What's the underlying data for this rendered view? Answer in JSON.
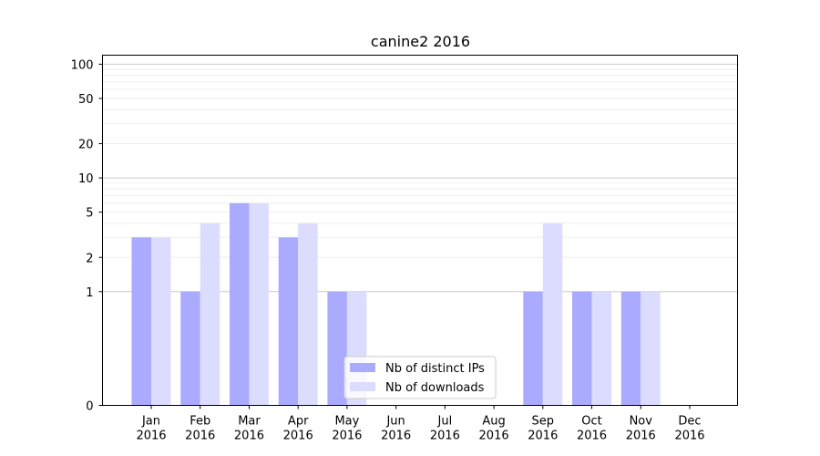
{
  "chart_data": {
    "type": "bar",
    "title": "canine2 2016",
    "xlabel": "",
    "ylabel": "",
    "categories": [
      "Jan\n2016",
      "Feb\n2016",
      "Mar\n2016",
      "Apr\n2016",
      "May\n2016",
      "Jun\n2016",
      "Jul\n2016",
      "Aug\n2016",
      "Sep\n2016",
      "Oct\n2016",
      "Nov\n2016",
      "Dec\n2016"
    ],
    "series": [
      {
        "name": "Nb of distinct IPs",
        "color": "#aaaaff",
        "values": [
          3,
          1,
          6,
          3,
          1,
          0,
          0,
          0,
          1,
          1,
          1,
          0
        ]
      },
      {
        "name": "Nb of downloads",
        "color": "#dcdcff",
        "values": [
          3,
          4,
          6,
          4,
          1,
          0,
          0,
          0,
          4,
          1,
          1,
          0
        ]
      }
    ],
    "y_scale": "symlog",
    "ylim": [
      0,
      120
    ],
    "y_ticks": [
      0,
      1,
      2,
      5,
      10,
      20,
      50,
      100
    ],
    "grid": true,
    "legend_placement": "lower center"
  }
}
